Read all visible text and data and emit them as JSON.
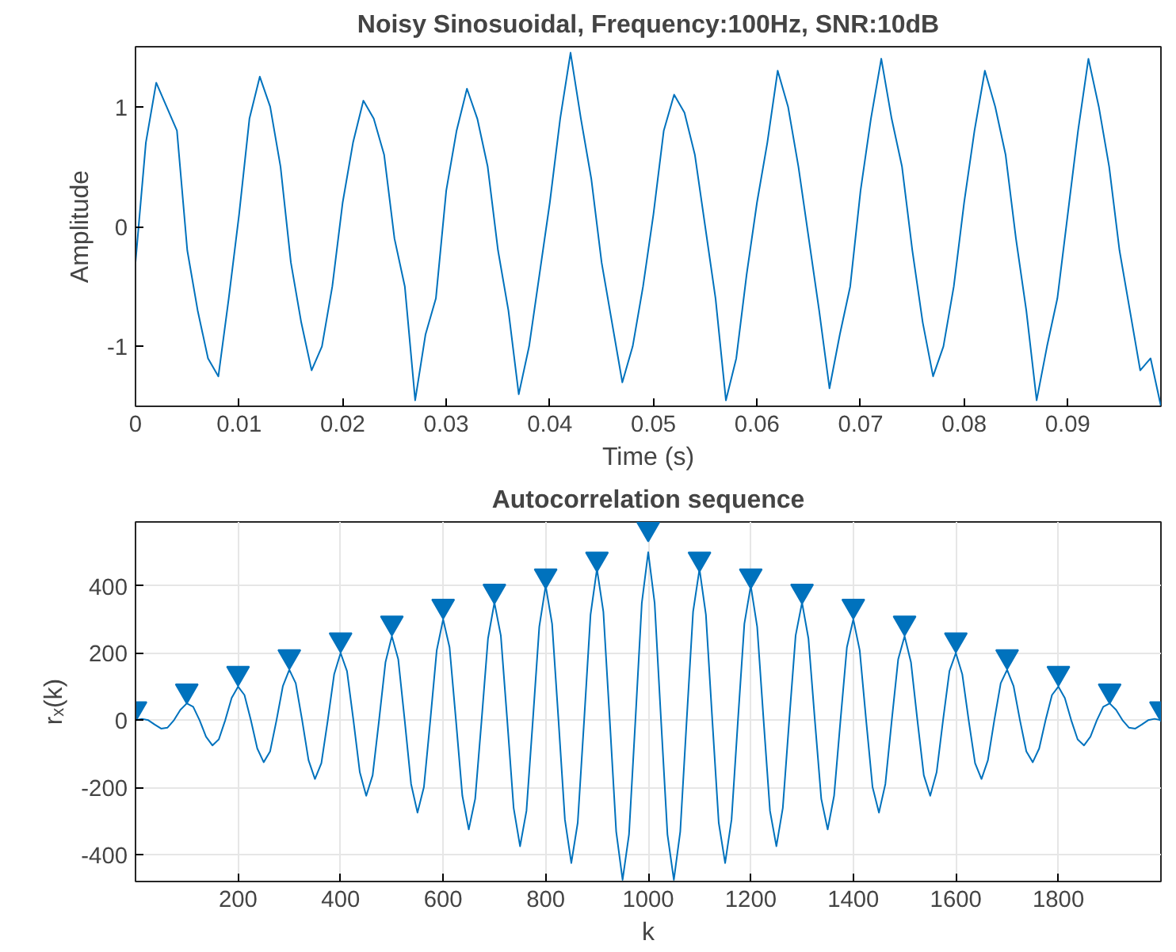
{
  "chart_data": [
    {
      "type": "line",
      "title": "Noisy Sinosuoidal, Frequency:100Hz, SNR:10dB",
      "xlabel": "Time (s)",
      "ylabel": "Amplitude",
      "grid": false,
      "xlim": [
        0,
        0.099
      ],
      "ylim": [
        -1.5,
        1.5
      ],
      "xticks": [
        0,
        0.01,
        0.02,
        0.03,
        0.04,
        0.05,
        0.06,
        0.07,
        0.08,
        0.09
      ],
      "yticks": [
        -1,
        0,
        1
      ],
      "x": [
        0,
        0.001,
        0.002,
        0.003,
        0.004,
        0.005,
        0.006,
        0.007,
        0.008,
        0.009,
        0.01,
        0.011,
        0.012,
        0.013,
        0.014,
        0.015,
        0.016,
        0.017,
        0.018,
        0.019,
        0.02,
        0.021,
        0.022,
        0.023,
        0.024,
        0.025,
        0.026,
        0.027,
        0.028,
        0.029,
        0.03,
        0.031,
        0.032,
        0.033,
        0.034,
        0.035,
        0.036,
        0.037,
        0.038,
        0.039,
        0.04,
        0.041,
        0.042,
        0.043,
        0.044,
        0.045,
        0.046,
        0.047,
        0.048,
        0.049,
        0.05,
        0.051,
        0.052,
        0.053,
        0.054,
        0.055,
        0.056,
        0.057,
        0.058,
        0.059,
        0.06,
        0.061,
        0.062,
        0.063,
        0.064,
        0.065,
        0.066,
        0.067,
        0.068,
        0.069,
        0.07,
        0.071,
        0.072,
        0.073,
        0.074,
        0.075,
        0.076,
        0.077,
        0.078,
        0.079,
        0.08,
        0.081,
        0.082,
        0.083,
        0.084,
        0.085,
        0.086,
        0.087,
        0.088,
        0.089,
        0.09,
        0.091,
        0.092,
        0.093,
        0.094,
        0.095,
        0.096,
        0.097,
        0.098,
        0.099
      ],
      "series": [
        {
          "color": "#0072bd",
          "values": [
            -0.3,
            0.7,
            1.2,
            1.0,
            0.8,
            -0.2,
            -0.7,
            -1.1,
            -1.25,
            -0.6,
            0.1,
            0.9,
            1.25,
            1.0,
            0.5,
            -0.3,
            -0.8,
            -1.2,
            -1.0,
            -0.5,
            0.2,
            0.7,
            1.05,
            0.9,
            0.6,
            -0.1,
            -0.5,
            -1.45,
            -0.9,
            -0.6,
            0.3,
            0.8,
            1.15,
            0.9,
            0.5,
            -0.2,
            -0.7,
            -1.4,
            -1.0,
            -0.4,
            0.2,
            0.9,
            1.45,
            0.9,
            0.4,
            -0.3,
            -0.8,
            -1.3,
            -1.0,
            -0.5,
            0.1,
            0.8,
            1.1,
            0.95,
            0.6,
            0.0,
            -0.6,
            -1.45,
            -1.1,
            -0.4,
            0.2,
            0.7,
            1.3,
            1.0,
            0.5,
            -0.1,
            -0.7,
            -1.35,
            -0.9,
            -0.5,
            0.3,
            0.9,
            1.4,
            0.9,
            0.5,
            -0.2,
            -0.8,
            -1.25,
            -1.0,
            -0.5,
            0.2,
            0.8,
            1.3,
            1.0,
            0.6,
            -0.1,
            -0.7,
            -1.45,
            -1.0,
            -0.6,
            0.1,
            0.8,
            1.4,
            1.0,
            0.5,
            -0.2,
            -0.7,
            -1.2,
            -1.1,
            -1.5
          ]
        }
      ]
    },
    {
      "type": "line",
      "title": "Autocorrelation sequence",
      "xlabel": "k",
      "ylabel": "rₓ(k)",
      "grid": true,
      "xlim": [
        0,
        2000
      ],
      "ylim": [
        -480,
        590
      ],
      "xticks": [
        200,
        400,
        600,
        800,
        1000,
        1200,
        1400,
        1600,
        1800
      ],
      "yticks": [
        -400,
        -200,
        0,
        200,
        400
      ],
      "x": [
        0,
        12.5,
        25,
        37.5,
        50,
        62.5,
        75,
        87.5,
        100,
        112.5,
        125,
        137.5,
        150,
        162.5,
        175,
        187.5,
        200,
        212.5,
        225,
        237.5,
        250,
        262.5,
        275,
        287.5,
        300,
        312.5,
        325,
        337.5,
        350,
        362.5,
        375,
        387.5,
        400,
        412.5,
        425,
        437.5,
        450,
        462.5,
        475,
        487.5,
        500,
        512.5,
        525,
        537.5,
        550,
        562.5,
        575,
        587.5,
        600,
        612.5,
        625,
        637.5,
        650,
        662.5,
        675,
        687.5,
        700,
        712.5,
        725,
        737.5,
        750,
        762.5,
        775,
        787.5,
        800,
        812.5,
        825,
        837.5,
        850,
        862.5,
        875,
        887.5,
        900,
        912.5,
        925,
        937.5,
        950,
        962.5,
        975,
        987.5,
        1000,
        1012.5,
        1025,
        1037.5,
        1050,
        1062.5,
        1075,
        1087.5,
        1100,
        1112.5,
        1125,
        1137.5,
        1150,
        1162.5,
        1175,
        1187.5,
        1200,
        1212.5,
        1225,
        1237.5,
        1250,
        1262.5,
        1275,
        1287.5,
        1300,
        1312.5,
        1325,
        1337.5,
        1350,
        1362.5,
        1375,
        1387.5,
        1400,
        1412.5,
        1425,
        1437.5,
        1450,
        1462.5,
        1475,
        1487.5,
        1500,
        1512.5,
        1525,
        1537.5,
        1550,
        1562.5,
        1575,
        1587.5,
        1600,
        1612.5,
        1625,
        1637.5,
        1650,
        1662.5,
        1675,
        1687.5,
        1700,
        1712.5,
        1725,
        1737.5,
        1750,
        1762.5,
        1775,
        1787.5,
        1800,
        1812.5,
        1825,
        1837.5,
        1850,
        1862.5,
        1875,
        1887.5,
        1900,
        1912.5,
        1925,
        1937.5,
        1950,
        1962.5,
        1975,
        1987.5,
        2000
      ],
      "series": [
        {
          "color": "#0072bd",
          "values": [
            0,
            4,
            0,
            -13,
            -25,
            -22,
            0,
            31,
            50,
            40,
            0,
            -49,
            -75,
            -57,
            0,
            66,
            100,
            75,
            0,
            -84,
            -125,
            -93,
            0,
            102,
            150,
            110,
            0,
            -119,
            -175,
            -128,
            0,
            137,
            200,
            146,
            0,
            -155,
            -225,
            -164,
            0,
            172,
            250,
            181,
            0,
            -190,
            -275,
            -199,
            0,
            208,
            300,
            217,
            0,
            -225,
            -325,
            -234,
            0,
            243,
            350,
            252,
            0,
            -261,
            -375,
            -270,
            0,
            278,
            400,
            287,
            0,
            -296,
            -425,
            -305,
            0,
            314,
            450,
            323,
            0,
            -331,
            -475,
            -340,
            0,
            349,
            500,
            349,
            0,
            -340,
            -475,
            -331,
            0,
            323,
            450,
            314,
            0,
            -305,
            -425,
            -296,
            0,
            287,
            400,
            278,
            0,
            -270,
            -375,
            -261,
            0,
            252,
            350,
            243,
            0,
            -234,
            -325,
            -225,
            0,
            217,
            300,
            208,
            0,
            -199,
            -275,
            -190,
            0,
            181,
            250,
            172,
            0,
            -164,
            -225,
            -155,
            0,
            146,
            200,
            137,
            0,
            -128,
            -175,
            -119,
            0,
            110,
            150,
            102,
            0,
            -93,
            -125,
            -84,
            0,
            75,
            100,
            66,
            0,
            -57,
            -75,
            -49,
            0,
            40,
            50,
            31,
            0,
            -22,
            -25,
            -13,
            0,
            4,
            0
          ]
        },
        {
          "type": "scatter",
          "marker": "triangle",
          "color": "#0072bd",
          "x": [
            0,
            100,
            200,
            300,
            400,
            500,
            600,
            700,
            800,
            900,
            1000,
            1100,
            1200,
            1300,
            1400,
            1500,
            1600,
            1700,
            1800,
            1900,
            2000
          ],
          "values": [
            35,
            88,
            140,
            190,
            240,
            290,
            340,
            385,
            430,
            480,
            570,
            480,
            430,
            385,
            340,
            290,
            240,
            190,
            140,
            88,
            35
          ]
        }
      ]
    }
  ]
}
